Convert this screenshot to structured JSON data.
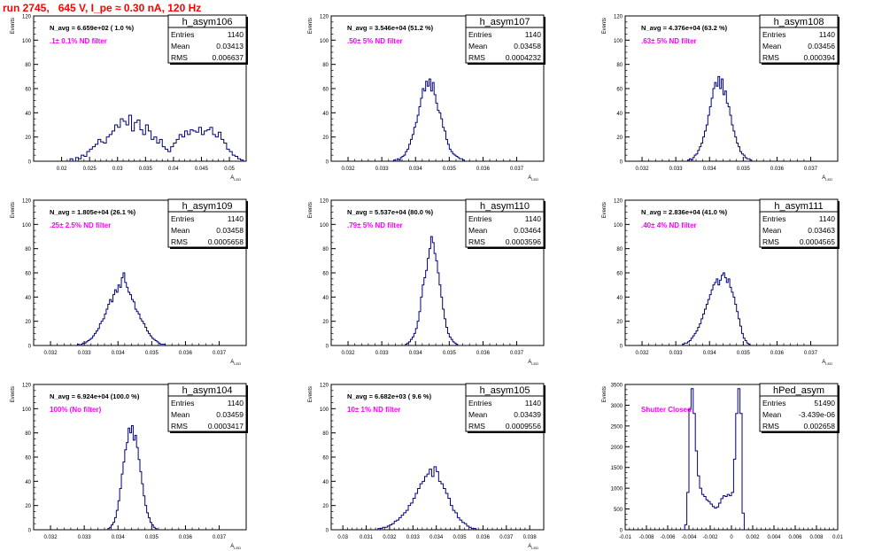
{
  "header": {
    "title": "run 2745,   645 V, I_pe ≈ 0.30 nA, 120 Hz"
  },
  "colors": {
    "histogram": "#00007f",
    "annotation": "#ff00ff",
    "title": "#ff0000",
    "axis": "#000000"
  },
  "chart_data": [
    {
      "type": "bar",
      "histogram": true,
      "name": "h_asym106",
      "stats": {
        "entries_label": "Entries",
        "entries": "1140",
        "mean_label": "Mean",
        "mean": "0.03413",
        "rms_label": "RMS",
        "rms": "0.006637"
      },
      "navg": "N_avg = 6.659e+02 ( 1.0 %)",
      "filter": ".1± 0.1% ND filter",
      "ylabel": "Events",
      "xlabel": "A_LED",
      "xlim": [
        0.015,
        0.053
      ],
      "ylim": [
        0,
        120
      ],
      "xticks": [
        0.02,
        0.025,
        0.03,
        0.035,
        0.04,
        0.045,
        0.05
      ],
      "xticklabels": [
        "0.02",
        "0.025",
        "0.03",
        "0.035",
        "0.04",
        "0.045",
        "0.05"
      ],
      "yticks": [
        0,
        20,
        40,
        60,
        80,
        100,
        120
      ],
      "bin_start": 0.0215,
      "bin_width": 0.0005,
      "counts": [
        2,
        0,
        3,
        2,
        5,
        4,
        8,
        10,
        12,
        14,
        18,
        16,
        15,
        20,
        22,
        25,
        30,
        28,
        35,
        33,
        30,
        38,
        25,
        32,
        34,
        26,
        22,
        30,
        25,
        18,
        20,
        15,
        18,
        12,
        10,
        8,
        12,
        15,
        18,
        22,
        20,
        25,
        22,
        26,
        25,
        24,
        28,
        22,
        25,
        26,
        28,
        22,
        20,
        24,
        18,
        15,
        10,
        8,
        5,
        4,
        2,
        1
      ]
    },
    {
      "type": "bar",
      "histogram": true,
      "name": "h_asym107",
      "stats": {
        "entries_label": "Entries",
        "entries": "1140",
        "mean_label": "Mean",
        "mean": "0.03458",
        "rms_label": "RMS",
        "rms": "0.0004232"
      },
      "navg": "N_avg = 3.546e+04 (51.2 %)",
      "filter": ".50± 5% ND filter",
      "ylabel": "Events",
      "xlabel": "A_LED",
      "xlim": [
        0.0315,
        0.0378
      ],
      "ylim": [
        0,
        120
      ],
      "xticks": [
        0.032,
        0.033,
        0.034,
        0.035,
        0.036,
        0.037
      ],
      "xticklabels": [
        "0.032",
        "0.033",
        "0.034",
        "0.035",
        "0.036",
        "0.037"
      ],
      "yticks": [
        0,
        20,
        40,
        60,
        80,
        100,
        120
      ],
      "bin_start": 0.03335,
      "bin_width": 5e-05,
      "counts": [
        1,
        0,
        2,
        1,
        3,
        4,
        5,
        8,
        10,
        14,
        18,
        22,
        28,
        32,
        38,
        45,
        52,
        60,
        58,
        66,
        62,
        68,
        58,
        65,
        55,
        48,
        42,
        40,
        35,
        28,
        25,
        18,
        14,
        10,
        8,
        6,
        5,
        4,
        3,
        2,
        2,
        1
      ]
    },
    {
      "type": "bar",
      "histogram": true,
      "name": "h_asym108",
      "stats": {
        "entries_label": "Entries",
        "entries": "1140",
        "mean_label": "Mean",
        "mean": "0.03456",
        "rms_label": "RMS",
        "rms": "0.000394"
      },
      "navg": "N_avg = 4.376e+04 (63.2 %)",
      "filter": ".63± 5% ND filter",
      "ylabel": "Events",
      "xlabel": "A_LED",
      "xlim": [
        0.0315,
        0.0378
      ],
      "ylim": [
        0,
        120
      ],
      "xticks": [
        0.032,
        0.033,
        0.034,
        0.035,
        0.036,
        0.037
      ],
      "xticklabels": [
        "0.032",
        "0.033",
        "0.034",
        "0.035",
        "0.036",
        "0.037"
      ],
      "yticks": [
        0,
        20,
        40,
        60,
        80,
        100,
        120
      ],
      "bin_start": 0.03335,
      "bin_width": 5e-05,
      "counts": [
        1,
        2,
        1,
        3,
        5,
        6,
        9,
        12,
        15,
        20,
        25,
        30,
        38,
        45,
        52,
        60,
        65,
        62,
        70,
        60,
        68,
        55,
        58,
        48,
        45,
        38,
        30,
        25,
        20,
        15,
        12,
        8,
        6,
        5,
        3,
        2,
        2,
        1
      ]
    },
    {
      "type": "bar",
      "histogram": true,
      "name": "h_asym109",
      "stats": {
        "entries_label": "Entries",
        "entries": "1140",
        "mean_label": "Mean",
        "mean": "0.03458",
        "rms_label": "RMS",
        "rms": "0.0005658"
      },
      "navg": "N_avg = 1.805e+04 (26.1 %)",
      "filter": ".25± 2.5% ND filter",
      "ylabel": "Events",
      "xlabel": "A_LED",
      "xlim": [
        0.0315,
        0.0378
      ],
      "ylim": [
        0,
        120
      ],
      "xticks": [
        0.032,
        0.033,
        0.034,
        0.035,
        0.036,
        0.037
      ],
      "xticklabels": [
        "0.032",
        "0.033",
        "0.034",
        "0.035",
        "0.036",
        "0.037"
      ],
      "yticks": [
        0,
        20,
        40,
        60,
        80,
        100,
        120
      ],
      "bin_start": 0.0328,
      "bin_width": 5e-05,
      "counts": [
        1,
        0,
        1,
        2,
        2,
        3,
        4,
        5,
        6,
        8,
        10,
        12,
        14,
        18,
        20,
        22,
        26,
        30,
        34,
        38,
        36,
        42,
        46,
        44,
        50,
        48,
        56,
        60,
        52,
        48,
        44,
        42,
        38,
        36,
        30,
        28,
        26,
        22,
        20,
        18,
        15,
        12,
        10,
        8,
        6,
        5,
        4,
        3,
        2,
        1,
        1,
        1
      ]
    },
    {
      "type": "bar",
      "histogram": true,
      "name": "h_asym110",
      "stats": {
        "entries_label": "Entries",
        "entries": "1140",
        "mean_label": "Mean",
        "mean": "0.03464",
        "rms_label": "RMS",
        "rms": "0.0003596"
      },
      "navg": "N_avg = 5.537e+04 (80.0 %)",
      "filter": ".79± 5% ND filter",
      "ylabel": "Events",
      "xlabel": "A_LED",
      "xlim": [
        0.0315,
        0.0378
      ],
      "ylim": [
        0,
        120
      ],
      "xticks": [
        0.032,
        0.033,
        0.034,
        0.035,
        0.036,
        0.037
      ],
      "xticklabels": [
        "0.032",
        "0.033",
        "0.034",
        "0.035",
        "0.036",
        "0.037"
      ],
      "yticks": [
        0,
        20,
        40,
        60,
        80,
        100,
        120
      ],
      "bin_start": 0.0337,
      "bin_width": 5e-05,
      "counts": [
        1,
        2,
        3,
        5,
        7,
        10,
        14,
        20,
        28,
        40,
        50,
        56,
        62,
        72,
        80,
        90,
        85,
        76,
        70,
        60,
        50,
        40,
        30,
        22,
        15,
        10,
        7,
        5,
        3,
        2,
        1
      ]
    },
    {
      "type": "bar",
      "histogram": true,
      "name": "h_asym111",
      "stats": {
        "entries_label": "Entries",
        "entries": "1140",
        "mean_label": "Mean",
        "mean": "0.03463",
        "rms_label": "RMS",
        "rms": "0.0004565"
      },
      "navg": "N_avg = 2.836e+04 (41.0 %)",
      "filter": ".40± 4% ND filter",
      "ylabel": "Events",
      "xlabel": "A_LED",
      "xlim": [
        0.0315,
        0.0378
      ],
      "ylim": [
        0,
        120
      ],
      "xticks": [
        0.032,
        0.033,
        0.034,
        0.035,
        0.036,
        0.037
      ],
      "xticklabels": [
        "0.032",
        "0.033",
        "0.034",
        "0.035",
        "0.036",
        "0.037"
      ],
      "yticks": [
        0,
        20,
        40,
        60,
        80,
        100,
        120
      ],
      "bin_start": 0.0332,
      "bin_width": 5e-05,
      "counts": [
        1,
        2,
        2,
        3,
        4,
        6,
        8,
        10,
        12,
        15,
        18,
        22,
        26,
        30,
        34,
        38,
        42,
        46,
        50,
        52,
        55,
        50,
        54,
        58,
        60,
        56,
        52,
        55,
        48,
        44,
        40,
        34,
        28,
        22,
        16,
        10,
        6,
        4,
        2,
        1
      ]
    },
    {
      "type": "bar",
      "histogram": true,
      "name": "h_asym104",
      "stats": {
        "entries_label": "Entries",
        "entries": "1140",
        "mean_label": "Mean",
        "mean": "0.03459",
        "rms_label": "RMS",
        "rms": "0.0003417"
      },
      "navg": "N_avg = 6.924e+04 (100.0 %)",
      "filter": "100% (No filter)",
      "ylabel": "Events",
      "xlabel": "A_LED",
      "xlim": [
        0.0315,
        0.0378
      ],
      "ylim": [
        0,
        120
      ],
      "xticks": [
        0.032,
        0.033,
        0.034,
        0.035,
        0.036,
        0.037
      ],
      "xticklabels": [
        "0.032",
        "0.033",
        "0.034",
        "0.035",
        "0.036",
        "0.037"
      ],
      "yticks": [
        0,
        20,
        40,
        60,
        80,
        100,
        120
      ],
      "bin_start": 0.0337,
      "bin_width": 5e-05,
      "counts": [
        1,
        2,
        4,
        6,
        10,
        16,
        24,
        34,
        46,
        56,
        66,
        72,
        84,
        80,
        86,
        74,
        78,
        68,
        58,
        48,
        38,
        28,
        20,
        14,
        10,
        6,
        4,
        2,
        1
      ]
    },
    {
      "type": "bar",
      "histogram": true,
      "name": "h_asym105",
      "stats": {
        "entries_label": "Entries",
        "entries": "1140",
        "mean_label": "Mean",
        "mean": "0.03439",
        "rms_label": "RMS",
        "rms": "0.0009556"
      },
      "navg": "N_avg = 6.682e+03 ( 9.6 %)",
      "filter": "10± 1% ND filter",
      "ylabel": "Events",
      "xlabel": "A_LED",
      "xlim": [
        0.0295,
        0.0386
      ],
      "ylim": [
        0,
        120
      ],
      "xticks": [
        0.03,
        0.031,
        0.032,
        0.033,
        0.034,
        0.035,
        0.036,
        0.037,
        0.038
      ],
      "xticklabels": [
        "0.03",
        "0.031",
        "0.032",
        "0.033",
        "0.034",
        "0.035",
        "0.036",
        "0.037",
        "0.038"
      ],
      "yticks": [
        0,
        20,
        40,
        60,
        80,
        100,
        120
      ],
      "bin_start": 0.0315,
      "bin_width": 0.0001,
      "counts": [
        1,
        1,
        2,
        2,
        3,
        4,
        5,
        7,
        8,
        10,
        12,
        14,
        16,
        20,
        22,
        26,
        30,
        34,
        38,
        40,
        44,
        46,
        50,
        44,
        52,
        48,
        40,
        38,
        34,
        30,
        26,
        20,
        16,
        14,
        10,
        8,
        6,
        5,
        3,
        2,
        1,
        1
      ]
    },
    {
      "type": "bar",
      "histogram": true,
      "name": "hPed_asym",
      "stats": {
        "entries_label": "Entries",
        "entries": "51490",
        "mean_label": "Mean",
        "mean": "-3.439e-06",
        "rms_label": "RMS",
        "rms": "0.002658"
      },
      "navg": "",
      "filter": "Shutter Closed",
      "ylabel": "Events",
      "xlabel": "",
      "xlim": [
        -0.01,
        0.01
      ],
      "ylim": [
        0,
        3500
      ],
      "xticks": [
        -0.01,
        -0.008,
        -0.006,
        -0.004,
        -0.002,
        0,
        0.002,
        0.004,
        0.006,
        0.008,
        0.01
      ],
      "xticklabels": [
        "-0.01",
        "-0.008",
        "-0.006",
        "-0.004",
        "-0.002",
        "0",
        "0.002",
        "0.004",
        "0.006",
        "0.008",
        "0.01"
      ],
      "yticks": [
        0,
        500,
        1000,
        1500,
        2000,
        2500,
        3000,
        3500
      ],
      "bin_start": -0.0046,
      "bin_width": 0.0002,
      "counts": [
        0,
        120,
        900,
        2900,
        3400,
        2800,
        1900,
        1300,
        1000,
        850,
        800,
        720,
        680,
        620,
        560,
        520,
        550,
        640,
        750,
        820,
        800,
        850,
        820,
        900,
        1700,
        2800,
        3400,
        2800,
        400,
        0
      ]
    }
  ]
}
